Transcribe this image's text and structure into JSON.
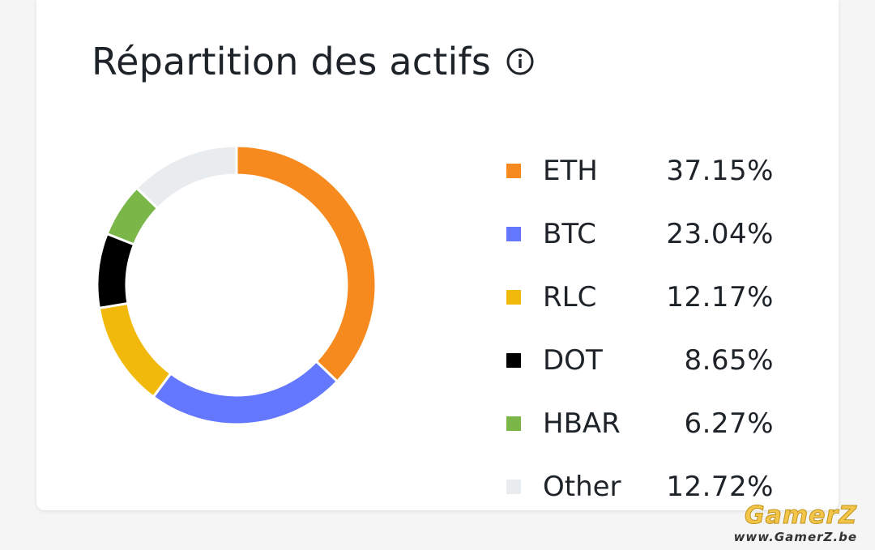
{
  "card": {
    "title": "Répartition des actifs",
    "info_icon": "info-circle-icon"
  },
  "chart_data": {
    "type": "pie",
    "style": "donut",
    "legend_position": "right",
    "series": [
      {
        "name": "ETH",
        "value": 37.15,
        "label": "37.15%",
        "color": "#f68a1e"
      },
      {
        "name": "BTC",
        "value": 23.04,
        "label": "23.04%",
        "color": "#6478ff"
      },
      {
        "name": "RLC",
        "value": 12.17,
        "label": "12.17%",
        "color": "#f0b90b"
      },
      {
        "name": "DOT",
        "value": 8.65,
        "label": "8.65%",
        "color": "#000000"
      },
      {
        "name": "HBAR",
        "value": 6.27,
        "label": "6.27%",
        "color": "#7ab648"
      },
      {
        "name": "Other",
        "value": 12.72,
        "label": "12.72%",
        "color": "#e9ecef"
      }
    ]
  },
  "watermark": {
    "name": "GamerZ",
    "url": "www.GamerZ.be"
  }
}
